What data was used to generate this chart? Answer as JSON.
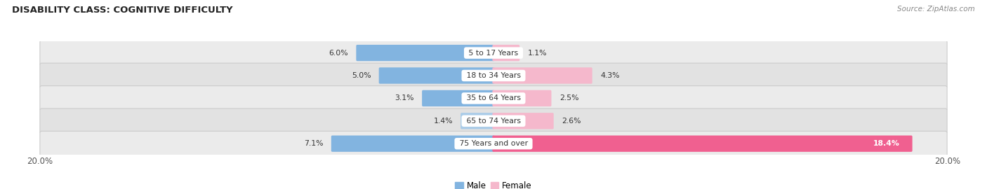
{
  "title": "DISABILITY CLASS: COGNITIVE DIFFICULTY",
  "source": "Source: ZipAtlas.com",
  "categories": [
    "5 to 17 Years",
    "18 to 34 Years",
    "35 to 64 Years",
    "65 to 74 Years",
    "75 Years and over"
  ],
  "male_values": [
    6.0,
    5.0,
    3.1,
    1.4,
    7.1
  ],
  "female_values": [
    1.1,
    4.3,
    2.5,
    2.6,
    18.4
  ],
  "x_max": 20.0,
  "male_color_normal": "#82b4e0",
  "male_color_light": "#aacce8",
  "female_color_normal": "#f08baa",
  "female_color_light": "#f5b8cc",
  "female_color_bright": "#f06090",
  "row_bg_color_light": "#ececec",
  "row_bg_color_dark": "#e0e0e0",
  "label_color": "#333333",
  "title_color": "#222222",
  "axis_label_color": "#555555",
  "background_color": "#ffffff",
  "male_colors": [
    "#82b4e0",
    "#82b4e0",
    "#82b4e0",
    "#aacce8",
    "#82b4e0"
  ],
  "female_colors": [
    "#f5b8cc",
    "#f5b8cc",
    "#f5b8cc",
    "#f5b8cc",
    "#f06090"
  ]
}
